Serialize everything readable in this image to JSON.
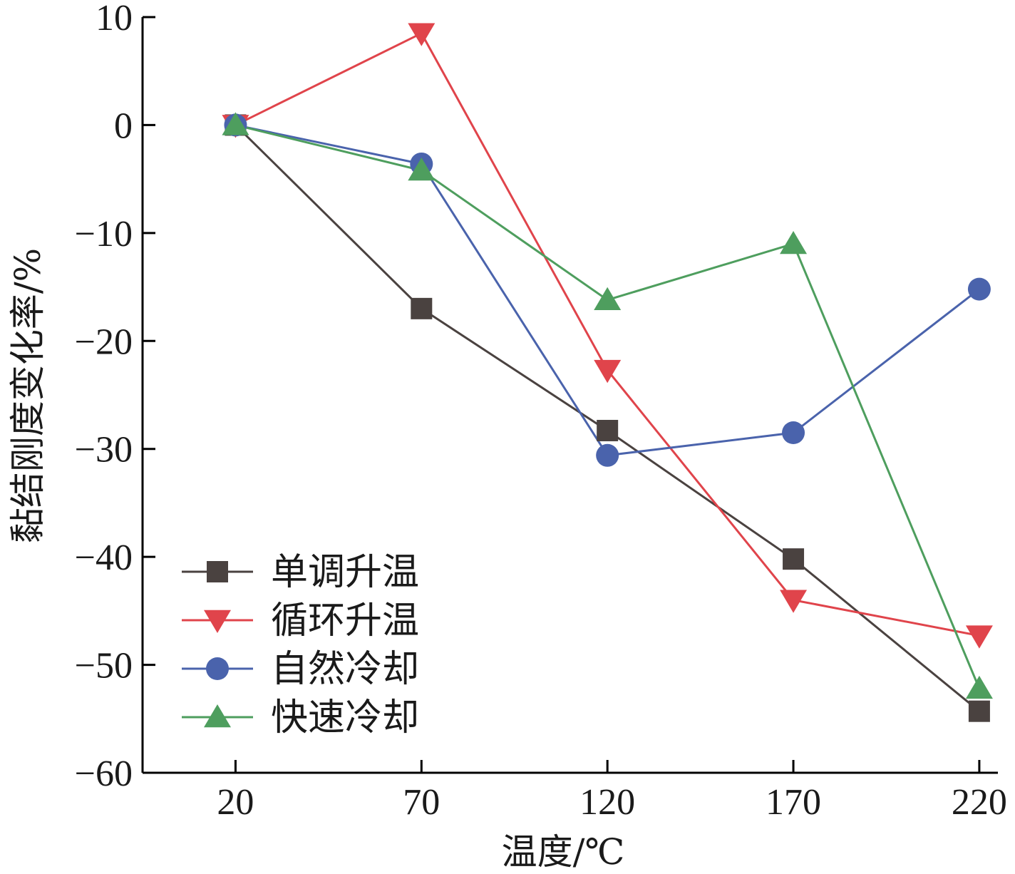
{
  "chart_data": {
    "type": "line",
    "title": "",
    "xlabel": "温度/℃",
    "ylabel": "黏结刚度变化率/%",
    "categories": [
      "20",
      "70",
      "120",
      "170",
      "220"
    ],
    "x": [
      20,
      70,
      120,
      170,
      220
    ],
    "xlim": [
      -5,
      225
    ],
    "ylim": [
      -60,
      10
    ],
    "yticks": [
      10,
      0,
      -10,
      -20,
      -30,
      -40,
      -50,
      -60
    ],
    "ytick_labels": [
      "10",
      "0",
      "−10",
      "−20",
      "−30",
      "−40",
      "−50",
      "−60"
    ],
    "grid": false,
    "legend_position": "bottom-left",
    "series": [
      {
        "name": "单调升温",
        "marker": "square",
        "color": "#4a4240",
        "values": [
          0,
          -17,
          -28.3,
          -40.2,
          -54.3
        ]
      },
      {
        "name": "循环升温",
        "marker": "triangle-down",
        "color": "#e0444b",
        "values": [
          0,
          8.5,
          -22.7,
          -44,
          -47.3
        ]
      },
      {
        "name": "自然冷却",
        "marker": "circle",
        "color": "#4a63ac",
        "values": [
          0,
          -3.6,
          -30.6,
          -28.5,
          -15.2
        ]
      },
      {
        "name": "快速冷却",
        "marker": "triangle-up",
        "color": "#4e9e5e",
        "values": [
          0,
          -4.2,
          -16.2,
          -11,
          -52.2
        ]
      }
    ]
  }
}
